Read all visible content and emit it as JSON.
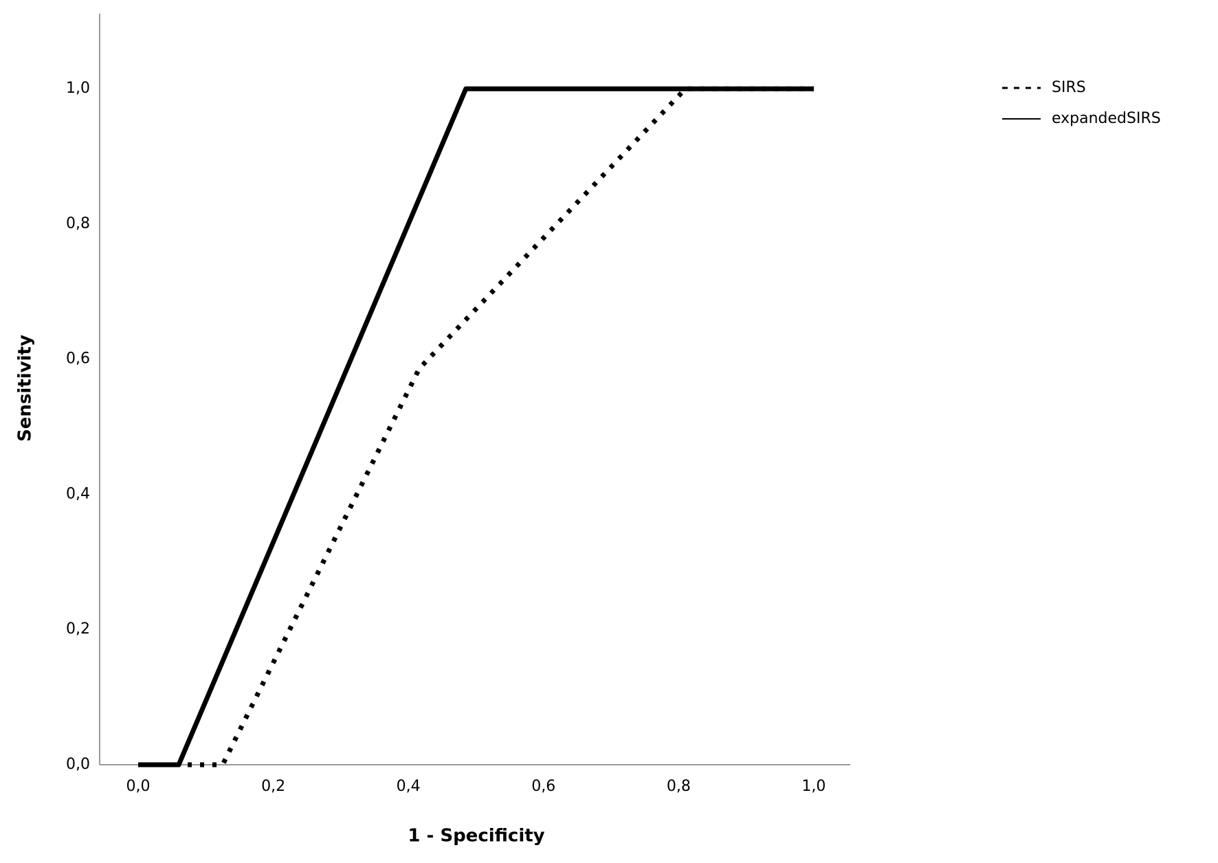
{
  "chart_data": {
    "type": "line",
    "x_label": "1 - Specificity",
    "y_label": "Sensitivity",
    "xlim": [
      -0.057,
      1.054
    ],
    "ylim": [
      0,
      1.111
    ],
    "xticks": [
      {
        "value": 0,
        "label": "0,0"
      },
      {
        "value": 0.2,
        "label": "0,2"
      },
      {
        "value": 0.4,
        "label": "0,4"
      },
      {
        "value": 0.6,
        "label": "0,6"
      },
      {
        "value": 0.8,
        "label": "0,8"
      },
      {
        "value": 1,
        "label": "1,0"
      }
    ],
    "yticks": [
      {
        "value": 0,
        "label": "0,0"
      },
      {
        "value": 0.2,
        "label": "0,2"
      },
      {
        "value": 0.4,
        "label": "0,4"
      },
      {
        "value": 0.6,
        "label": "0,6"
      },
      {
        "value": 0.8,
        "label": "0,8"
      },
      {
        "value": 1,
        "label": "1,0"
      }
    ],
    "grid": false,
    "legend": "top-right",
    "series": [
      {
        "name": "SIRS",
        "color": "#000000",
        "style": "dotted",
        "x": [
          0,
          0.125,
          0.416,
          0.81,
          1
        ],
        "values": [
          0,
          0,
          0.586,
          1,
          1
        ]
      },
      {
        "name": "expandedSIRS",
        "color": "#000000",
        "style": "solid",
        "x": [
          0,
          0.06,
          0.485,
          1
        ],
        "values": [
          0,
          0,
          1,
          1
        ]
      }
    ]
  }
}
